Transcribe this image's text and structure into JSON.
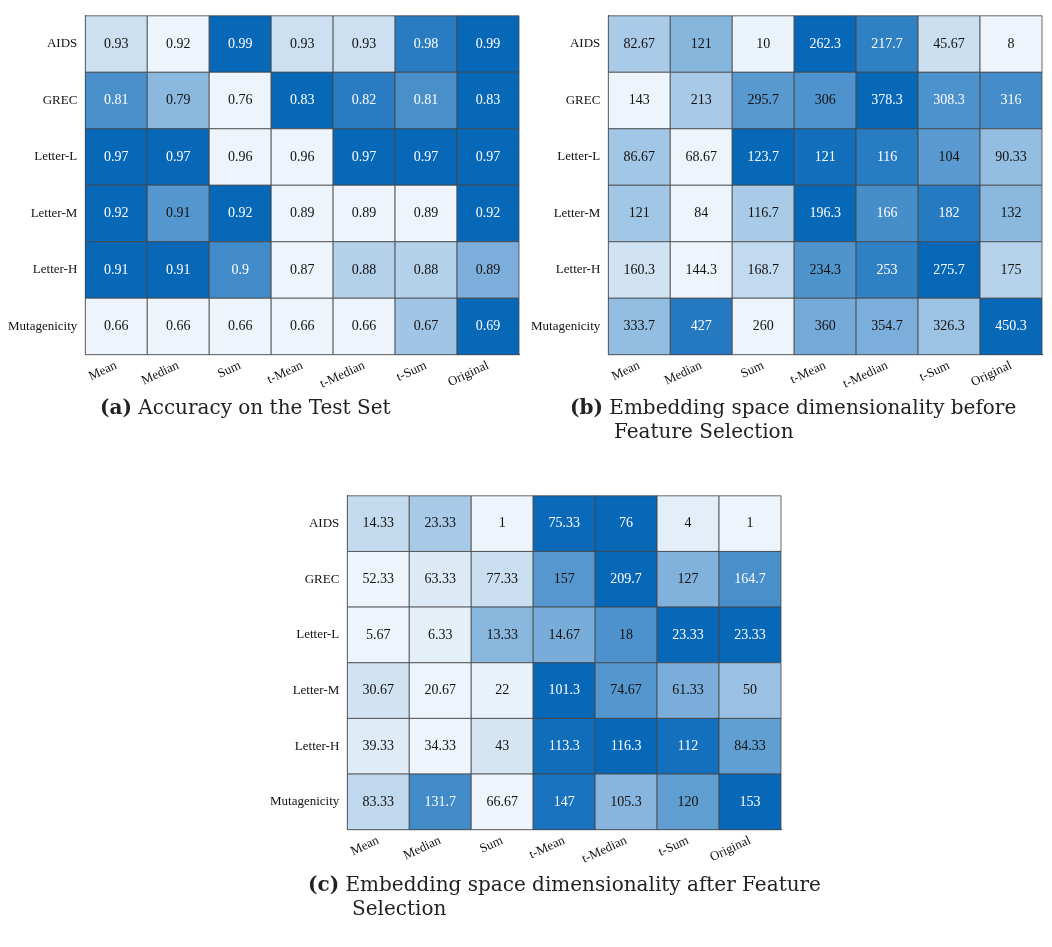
{
  "chart_data": [
    {
      "type": "heatmap",
      "title": "(a) Accuracy on the Test Set",
      "categories": [
        "Mean",
        "Median",
        "Sum",
        "t-Mean",
        "t-Median",
        "t-Sum",
        "Original"
      ],
      "y_categories": [
        "AIDS",
        "GREC",
        "Letter-L",
        "Letter-M",
        "Letter-H",
        "Mutagenicity"
      ],
      "colors": [
        "#edf4fb",
        "#0868b8"
      ],
      "data_labels": true,
      "cells": [
        [
          0.93,
          0.92,
          0.99,
          0.93,
          0.93,
          0.98,
          0.99
        ],
        [
          0.81,
          0.79,
          0.76,
          0.83,
          0.82,
          0.81,
          0.83
        ],
        [
          0.97,
          0.97,
          0.96,
          0.96,
          0.97,
          0.97,
          0.97
        ],
        [
          0.92,
          0.91,
          0.92,
          0.89,
          0.89,
          0.89,
          0.92
        ],
        [
          0.91,
          0.91,
          0.9,
          0.87,
          0.88,
          0.88,
          0.89
        ],
        [
          0.66,
          0.66,
          0.66,
          0.66,
          0.66,
          0.67,
          0.69
        ]
      ]
    },
    {
      "type": "heatmap",
      "title": "(b) Embedding space dimensionality before Feature Selection",
      "categories": [
        "Mean",
        "Median",
        "Sum",
        "t-Mean",
        "t-Median",
        "t-Sum",
        "Original"
      ],
      "y_categories": [
        "AIDS",
        "GREC",
        "Letter-L",
        "Letter-M",
        "Letter-H",
        "Mutagenicity"
      ],
      "colors": [
        "#edf4fb",
        "#0868b8"
      ],
      "data_labels": true,
      "cells": [
        [
          82.67,
          121,
          10,
          262.3,
          217.7,
          45.67,
          8
        ],
        [
          143,
          213,
          295.7,
          306,
          378.3,
          308.3,
          316
        ],
        [
          86.67,
          68.67,
          123.7,
          121,
          116,
          104,
          90.33
        ],
        [
          121,
          84,
          116.7,
          196.3,
          166,
          182,
          132
        ],
        [
          160.3,
          144.3,
          168.7,
          234.3,
          253,
          275.7,
          175
        ],
        [
          333.7,
          427,
          260,
          360,
          354.7,
          326.3,
          450.3
        ]
      ]
    },
    {
      "type": "heatmap",
      "title": "(c) Embedding space dimensionality after Feature Selection",
      "categories": [
        "Mean",
        "Median",
        "Sum",
        "t-Mean",
        "t-Median",
        "t-Sum",
        "Original"
      ],
      "y_categories": [
        "AIDS",
        "GREC",
        "Letter-L",
        "Letter-M",
        "Letter-H",
        "Mutagenicity"
      ],
      "colors": [
        "#edf4fb",
        "#0868b8"
      ],
      "data_labels": true,
      "cells": [
        [
          14.33,
          23.33,
          1,
          75.33,
          76,
          4,
          1
        ],
        [
          52.33,
          63.33,
          77.33,
          157,
          209.7,
          127,
          164.7
        ],
        [
          5.67,
          6.33,
          13.33,
          14.67,
          18,
          23.33,
          23.33
        ],
        [
          30.67,
          20.67,
          22,
          101.3,
          74.67,
          61.33,
          50
        ],
        [
          39.33,
          34.33,
          43,
          113.3,
          116.3,
          112,
          84.33
        ],
        [
          83.33,
          131.7,
          66.67,
          147,
          105.3,
          120,
          153
        ]
      ]
    }
  ]
}
